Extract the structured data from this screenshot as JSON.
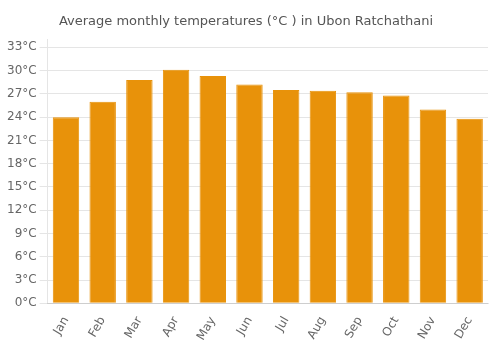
{
  "chart_data": {
    "type": "bar",
    "title": "Average monthly temperatures (°C ) in Ubon Ratchathani",
    "categories": [
      "Jan",
      "Feb",
      "Mar",
      "Apr",
      "May",
      "Jun",
      "Jul",
      "Aug",
      "Sep",
      "Oct",
      "Nov",
      "Dec"
    ],
    "values": [
      24.0,
      26.0,
      28.8,
      30.1,
      29.3,
      28.2,
      27.5,
      27.4,
      27.2,
      26.8,
      25.0,
      23.8
    ],
    "color": "#E8920A",
    "ylim": [
      0,
      34
    ],
    "yticks": [
      {
        "value": 0,
        "label": "0°C"
      },
      {
        "value": 3,
        "label": "3°C"
      },
      {
        "value": 6,
        "label": "6°C"
      },
      {
        "value": 9,
        "label": "9°C"
      },
      {
        "value": 12,
        "label": "12°C"
      },
      {
        "value": 15,
        "label": "15°C"
      },
      {
        "value": 18,
        "label": "18°C"
      },
      {
        "value": 21,
        "label": "21°C"
      },
      {
        "value": 24,
        "label": "24°C"
      },
      {
        "value": 27,
        "label": "27°C"
      },
      {
        "value": 30,
        "label": "30°C"
      },
      {
        "value": 33,
        "label": "33°C"
      }
    ],
    "grid": true
  }
}
